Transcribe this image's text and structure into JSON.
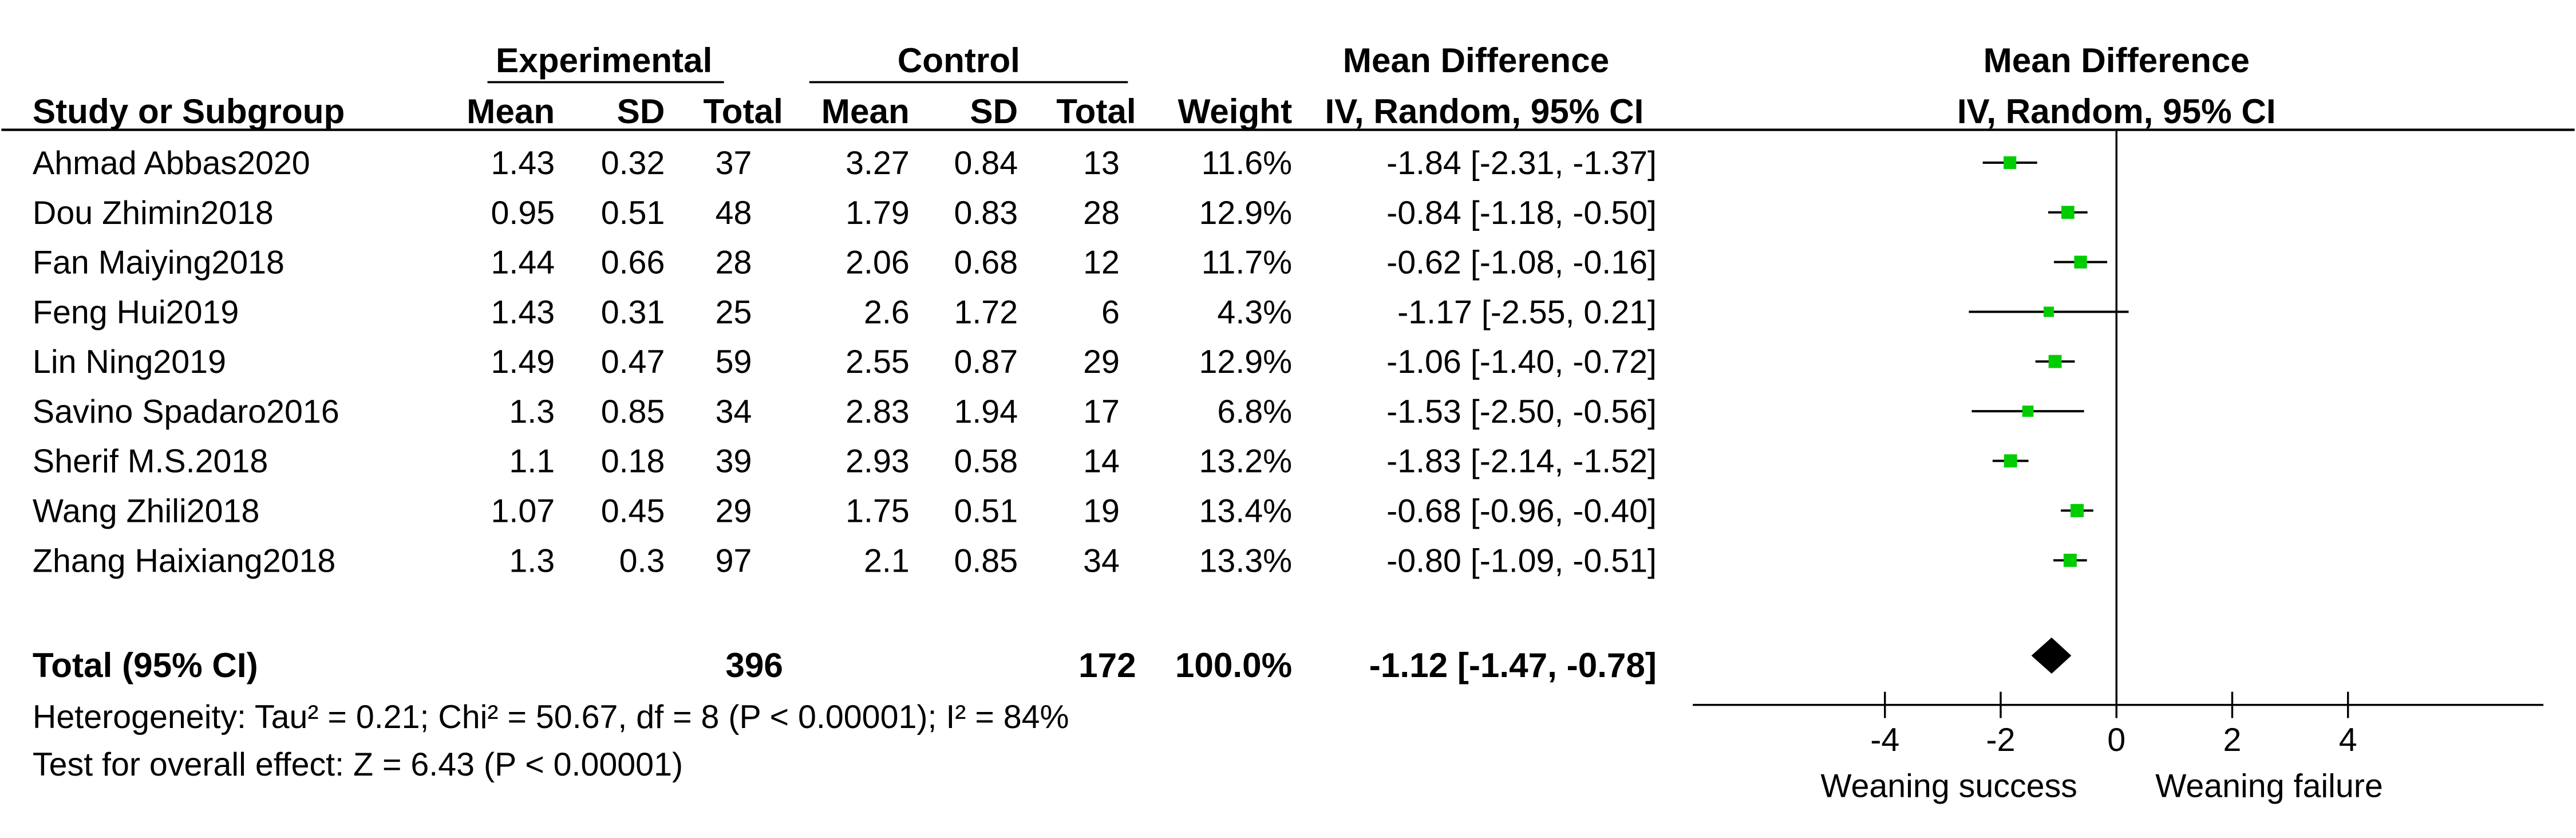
{
  "header": {
    "group_experimental": "Experimental",
    "group_control": "Control",
    "group_md": "Mean Difference",
    "group_md_plot": "Mean Difference",
    "col_study": "Study or Subgroup",
    "col_mean_e": "Mean",
    "col_sd_e": "SD",
    "col_total_e": "Total",
    "col_mean_c": "Mean",
    "col_sd_c": "SD",
    "col_total_c": "Total",
    "col_weight": "Weight",
    "col_ci": "IV, Random, 95% CI",
    "col_ci_plot": "IV, Random, 95% CI"
  },
  "studies": [
    {
      "name": "Ahmad Abbas2020",
      "mean_e": "1.43",
      "sd_e": "0.32",
      "total_e": "37",
      "mean_c": "3.27",
      "sd_c": "0.84",
      "total_c": "13",
      "weight": "11.6%",
      "ci_text": "-1.84 [-2.31, -1.37]"
    },
    {
      "name": "Dou Zhimin2018",
      "mean_e": "0.95",
      "sd_e": "0.51",
      "total_e": "48",
      "mean_c": "1.79",
      "sd_c": "0.83",
      "total_c": "28",
      "weight": "12.9%",
      "ci_text": "-0.84 [-1.18, -0.50]"
    },
    {
      "name": "Fan Maiying2018",
      "mean_e": "1.44",
      "sd_e": "0.66",
      "total_e": "28",
      "mean_c": "2.06",
      "sd_c": "0.68",
      "total_c": "12",
      "weight": "11.7%",
      "ci_text": "-0.62 [-1.08, -0.16]"
    },
    {
      "name": "Feng Hui2019",
      "mean_e": "1.43",
      "sd_e": "0.31",
      "total_e": "25",
      "mean_c": "2.6",
      "sd_c": "1.72",
      "total_c": "6",
      "weight": "4.3%",
      "ci_text": "-1.17 [-2.55, 0.21]"
    },
    {
      "name": "Lin Ning2019",
      "mean_e": "1.49",
      "sd_e": "0.47",
      "total_e": "59",
      "mean_c": "2.55",
      "sd_c": "0.87",
      "total_c": "29",
      "weight": "12.9%",
      "ci_text": "-1.06 [-1.40, -0.72]"
    },
    {
      "name": "Savino Spadaro2016",
      "mean_e": "1.3",
      "sd_e": "0.85",
      "total_e": "34",
      "mean_c": "2.83",
      "sd_c": "1.94",
      "total_c": "17",
      "weight": "6.8%",
      "ci_text": "-1.53 [-2.50, -0.56]"
    },
    {
      "name": "Sherif M.S.2018",
      "mean_e": "1.1",
      "sd_e": "0.18",
      "total_e": "39",
      "mean_c": "2.93",
      "sd_c": "0.58",
      "total_c": "14",
      "weight": "13.2%",
      "ci_text": "-1.83 [-2.14, -1.52]"
    },
    {
      "name": "Wang Zhili2018",
      "mean_e": "1.07",
      "sd_e": "0.45",
      "total_e": "29",
      "mean_c": "1.75",
      "sd_c": "0.51",
      "total_c": "19",
      "weight": "13.4%",
      "ci_text": "-0.68 [-0.96, -0.40]"
    },
    {
      "name": "Zhang Haixiang2018",
      "mean_e": "1.3",
      "sd_e": "0.3",
      "total_e": "97",
      "mean_c": "2.1",
      "sd_c": "0.85",
      "total_c": "34",
      "weight": "13.3%",
      "ci_text": "-0.80 [-1.09, -0.51]"
    }
  ],
  "total": {
    "label": "Total (95% CI)",
    "total_e": "396",
    "total_c": "172",
    "weight": "100.0%",
    "ci_text": "-1.12 [-1.47, -0.78]"
  },
  "footer": {
    "heterogeneity": "Heterogeneity: Tau² = 0.21; Chi² = 50.67, df = 8 (P < 0.00001); I² = 84%",
    "overall_effect": "Test for overall effect: Z = 6.43 (P < 0.00001)"
  },
  "axis_labels": {
    "left": "Weaning success",
    "right": "Weaning failure"
  },
  "colors": {
    "point": "#00cc00",
    "line": "#000000",
    "diamond": "#000000"
  },
  "chart_data": {
    "type": "forest",
    "xlim": [
      -4,
      4
    ],
    "xticks": [
      -4,
      -2,
      0,
      2,
      4
    ],
    "reference_line": 0,
    "studies": [
      {
        "name": "Ahmad Abbas2020",
        "md": -1.84,
        "lo": -2.31,
        "hi": -1.37,
        "weight": 11.6
      },
      {
        "name": "Dou Zhimin2018",
        "md": -0.84,
        "lo": -1.18,
        "hi": -0.5,
        "weight": 12.9
      },
      {
        "name": "Fan Maiying2018",
        "md": -0.62,
        "lo": -1.08,
        "hi": -0.16,
        "weight": 11.7
      },
      {
        "name": "Feng Hui2019",
        "md": -1.17,
        "lo": -2.55,
        "hi": 0.21,
        "weight": 4.3
      },
      {
        "name": "Lin Ning2019",
        "md": -1.06,
        "lo": -1.4,
        "hi": -0.72,
        "weight": 12.9
      },
      {
        "name": "Savino Spadaro2016",
        "md": -1.53,
        "lo": -2.5,
        "hi": -0.56,
        "weight": 6.8
      },
      {
        "name": "Sherif M.S.2018",
        "md": -1.83,
        "lo": -2.14,
        "hi": -1.52,
        "weight": 13.2
      },
      {
        "name": "Wang Zhili2018",
        "md": -0.68,
        "lo": -0.96,
        "hi": -0.4,
        "weight": 13.4
      },
      {
        "name": "Zhang Haixiang2018",
        "md": -0.8,
        "lo": -1.09,
        "hi": -0.51,
        "weight": 13.3
      }
    ],
    "pooled": {
      "md": -1.12,
      "lo": -1.47,
      "hi": -0.78
    }
  }
}
